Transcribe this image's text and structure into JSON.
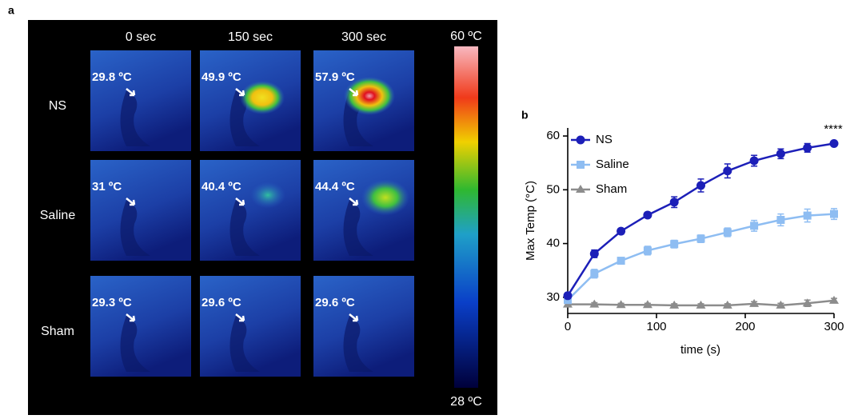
{
  "thermal_images": {
    "label": "a",
    "columns": [
      "0 sec",
      "150 sec",
      "300 sec"
    ],
    "rows": [
      {
        "name": "NS",
        "temps": [
          "29.8 ºC",
          "49.9 ºC",
          "57.9 ºC"
        ]
      },
      {
        "name": "Saline",
        "temps": [
          "31 ºC",
          "40.4 ºC",
          "44.4 ºC"
        ]
      },
      {
        "name": "Sham",
        "temps": [
          "29.3 ºC",
          "29.6 ºC",
          "29.6 ºC"
        ]
      }
    ],
    "colorbar": {
      "max_label": "60 ºC",
      "min_label": "28 ºC"
    }
  },
  "chart_data": {
    "type": "line",
    "label": "b",
    "x_label": "time (s)",
    "y_label": "Max Temp (°C)",
    "annotation": "****",
    "x": [
      0,
      30,
      60,
      90,
      120,
      150,
      180,
      210,
      240,
      270,
      300
    ],
    "series": [
      {
        "name": "NS",
        "color": "#1c1fb8",
        "marker": "circle",
        "values": [
          30.3,
          38.1,
          42.3,
          45.3,
          47.7,
          50.8,
          53.5,
          55.4,
          56.7,
          57.8,
          58.6
        ],
        "errors": [
          0.5,
          0.7,
          0.5,
          0.5,
          1.0,
          1.2,
          1.3,
          1.0,
          0.9,
          0.8,
          0.4
        ]
      },
      {
        "name": "Saline",
        "color": "#8ebdf2",
        "marker": "square",
        "values": [
          29.5,
          34.4,
          36.8,
          38.7,
          39.9,
          40.9,
          42.1,
          43.3,
          44.4,
          45.2,
          45.5
        ],
        "errors": [
          0.5,
          0.8,
          0.6,
          0.8,
          0.7,
          0.7,
          0.8,
          1.0,
          1.1,
          1.2,
          1.0
        ]
      },
      {
        "name": "Sham",
        "color": "#8c8c8c",
        "marker": "triangle",
        "values": [
          28.7,
          28.7,
          28.6,
          28.6,
          28.5,
          28.5,
          28.5,
          28.8,
          28.5,
          28.9,
          29.4
        ],
        "errors": [
          0.3,
          0.3,
          0.3,
          0.3,
          0.3,
          0.3,
          0.3,
          0.4,
          0.4,
          0.6,
          0.4
        ]
      }
    ],
    "xlim": [
      0,
      300
    ],
    "xticks": [
      0,
      100,
      200,
      300
    ],
    "ylim": [
      27,
      61.5
    ],
    "yticks": [
      30,
      40,
      50,
      60
    ]
  }
}
